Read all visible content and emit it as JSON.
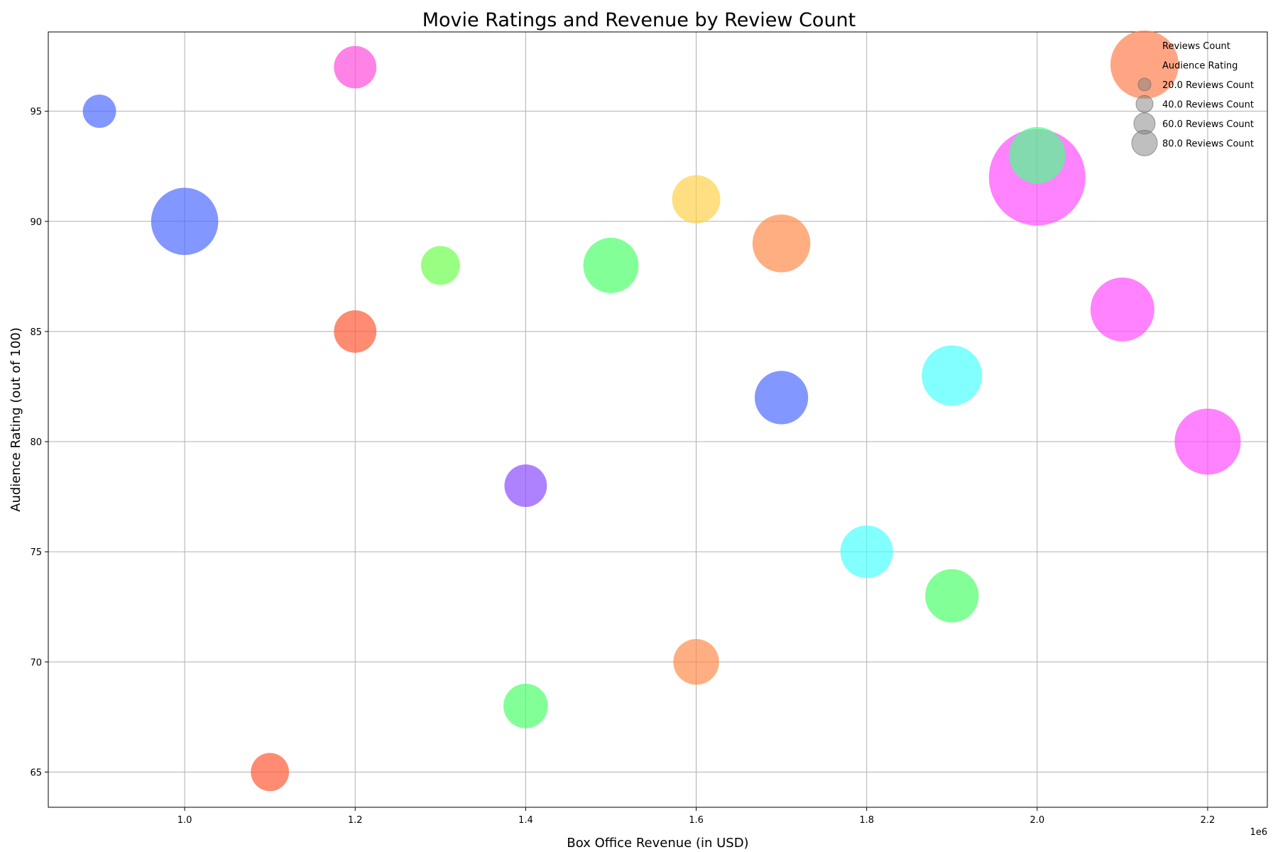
{
  "chart_data": {
    "type": "scatter",
    "title": "Movie Ratings and Revenue by Review Count",
    "xlabel": "Box Office Revenue (in USD)",
    "ylabel": "Audience Rating (out of 100)",
    "x_offset_label": "1e6",
    "xlim": [
      0.84,
      2.27
    ],
    "ylim": [
      63.4,
      98.6
    ],
    "x_ticks": [
      1.0,
      1.2,
      1.4,
      1.6,
      1.8,
      2.0,
      2.2
    ],
    "x_tick_labels": [
      "1.0",
      "1.2",
      "1.4",
      "1.6",
      "1.8",
      "2.0",
      "2.2"
    ],
    "y_ticks": [
      65,
      70,
      75,
      80,
      85,
      90,
      95
    ],
    "y_tick_labels": [
      "65",
      "70",
      "75",
      "80",
      "85",
      "90",
      "95"
    ],
    "grid": true,
    "legend_placement": "top-right",
    "legend": {
      "header_items": [
        "Reviews Count",
        "Audience Rating"
      ],
      "header_color": "#ff7f50",
      "size_items": [
        {
          "label": "20.0 Reviews Count",
          "reviews": 20
        },
        {
          "label": "40.0 Reviews Count",
          "reviews": 40
        },
        {
          "label": "60.0 Reviews Count",
          "reviews": 60
        },
        {
          "label": "80.0 Reviews Count",
          "reviews": 80
        }
      ]
    },
    "points": [
      {
        "x": 0.9,
        "y": 95,
        "reviews": 38,
        "color": "#4d6bff"
      },
      {
        "x": 1.0,
        "y": 90,
        "reviews": 155,
        "color": "#4d6bff"
      },
      {
        "x": 1.2,
        "y": 97,
        "reviews": 62,
        "color": "#ff4ddc"
      },
      {
        "x": 1.2,
        "y": 85,
        "reviews": 62,
        "color": "#ff5a36"
      },
      {
        "x": 1.3,
        "y": 88,
        "reviews": 52,
        "color": "#6dff4d"
      },
      {
        "x": 1.5,
        "y": 88,
        "reviews": 105,
        "color": "#4dff6b"
      },
      {
        "x": 1.6,
        "y": 91,
        "reviews": 80,
        "color": "#ffd24d"
      },
      {
        "x": 1.7,
        "y": 89,
        "reviews": 115,
        "color": "#ff8c4d"
      },
      {
        "x": 1.7,
        "y": 82,
        "reviews": 98,
        "color": "#4d6bff"
      },
      {
        "x": 1.4,
        "y": 78,
        "reviews": 62,
        "color": "#8c4dff"
      },
      {
        "x": 2.0,
        "y": 92,
        "reviews": 320,
        "color": "#ff4dff"
      },
      {
        "x": 2.0,
        "y": 93,
        "reviews": 110,
        "color": "#4dff8c"
      },
      {
        "x": 2.1,
        "y": 86,
        "reviews": 140,
        "color": "#ff4dff"
      },
      {
        "x": 1.9,
        "y": 83,
        "reviews": 125,
        "color": "#4dffff"
      },
      {
        "x": 2.2,
        "y": 80,
        "reviews": 150,
        "color": "#ff4dff"
      },
      {
        "x": 1.8,
        "y": 75,
        "reviews": 95,
        "color": "#4dffff"
      },
      {
        "x": 1.9,
        "y": 73,
        "reviews": 98,
        "color": "#4dff6b"
      },
      {
        "x": 1.6,
        "y": 70,
        "reviews": 72,
        "color": "#ff8c4d"
      },
      {
        "x": 1.4,
        "y": 68,
        "reviews": 68,
        "color": "#4dff6b"
      },
      {
        "x": 1.1,
        "y": 65,
        "reviews": 50,
        "color": "#ff5a36"
      }
    ]
  }
}
